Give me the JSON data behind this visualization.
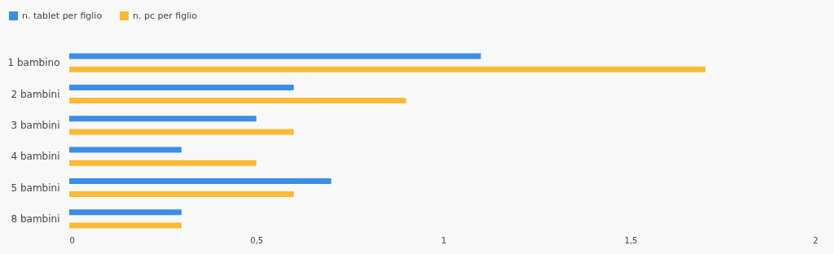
{
  "chart_data": {
    "type": "bar",
    "orientation": "horizontal",
    "categories": [
      "1 bambino",
      "2 bambini",
      "3 bambini",
      "4 bambini",
      "5 bambini",
      "8 bambini"
    ],
    "series": [
      {
        "name": "n. tablet per figlio",
        "color": "#3a8ee6",
        "values": [
          1.1,
          0.6,
          0.5,
          0.3,
          0.7,
          0.3
        ]
      },
      {
        "name": "n. pc per figlio",
        "color": "#fbb935",
        "values": [
          1.7,
          0.9,
          0.6,
          0.5,
          0.6,
          0.3
        ]
      }
    ],
    "xlim": [
      0,
      2
    ],
    "xticks": [
      0,
      {
        "value": 0.5,
        "label": "0,5"
      },
      1,
      {
        "value": 1.5,
        "label": "1,5"
      },
      2
    ],
    "grid": false,
    "legend": "top left"
  }
}
